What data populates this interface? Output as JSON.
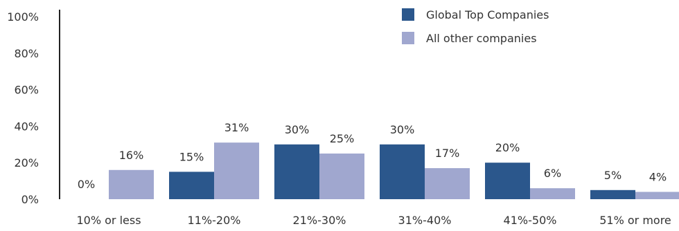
{
  "chart_data": {
    "type": "bar",
    "categories": [
      "10% or less",
      "11%-20%",
      "21%-30%",
      "31%-40%",
      "41%-50%",
      "51% or more"
    ],
    "series": [
      {
        "name": "Global Top Companies",
        "values": [
          0,
          15,
          30,
          30,
          20,
          5
        ],
        "labels": [
          "0%",
          "15%",
          "30%",
          "30%",
          "20%",
          "5%"
        ],
        "color": "#2b578c"
      },
      {
        "name": "All other companies",
        "values": [
          16,
          31,
          25,
          17,
          6,
          4
        ],
        "labels": [
          "16%",
          "31%",
          "25%",
          "17%",
          "6%",
          "4%"
        ],
        "color": "#a0a7cf"
      }
    ],
    "ylim": [
      0,
      100
    ],
    "yticks": [
      0,
      20,
      40,
      60,
      80,
      100
    ],
    "ytick_labels": [
      "0%",
      "20%",
      "40%",
      "60%",
      "80%",
      "100%"
    ],
    "title": "",
    "xlabel": "",
    "ylabel": "",
    "grid": false,
    "legend_position": "top-right"
  }
}
